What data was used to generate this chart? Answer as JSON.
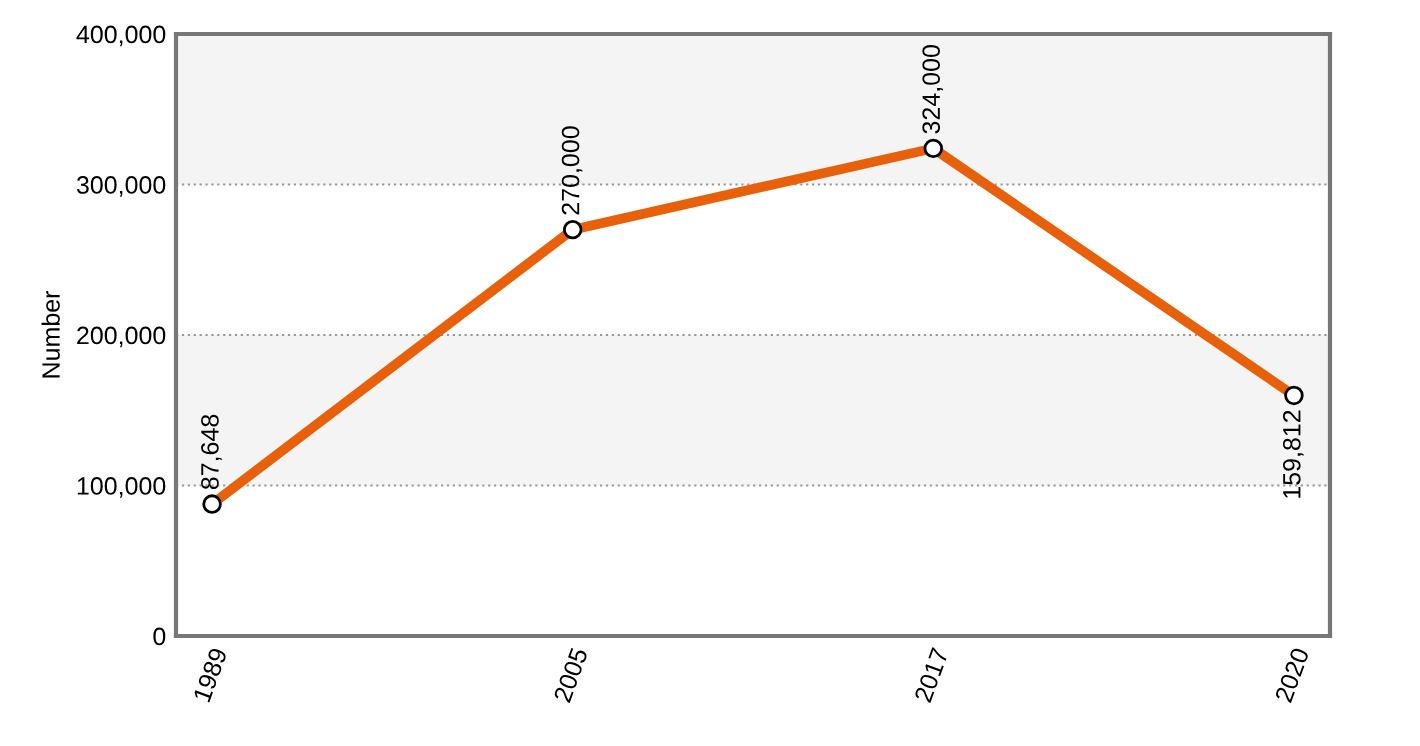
{
  "chart_data": {
    "type": "line",
    "ylabel": "Number",
    "categories": [
      "1989",
      "2005",
      "2017",
      "2020"
    ],
    "series": [
      {
        "color": "#e8600a",
        "values": [
          87648,
          270000,
          324000,
          159812
        ],
        "value_labels": [
          "87,648",
          "270,000",
          "324,000",
          "159,812"
        ]
      }
    ],
    "ylim": [
      0,
      400000
    ],
    "yticks": [
      {
        "value": 0,
        "label": "0"
      },
      {
        "value": 100000,
        "label": "100,000"
      },
      {
        "value": 200000,
        "label": "200,000"
      },
      {
        "value": 300000,
        "label": "300,000"
      },
      {
        "value": 400000,
        "label": "400,000"
      }
    ],
    "bands": [
      {
        "axis": "y",
        "from": 100000,
        "to": 200000,
        "color": "#f4f4f4"
      },
      {
        "axis": "y",
        "from": 300000,
        "to": 400000,
        "color": "#f4f4f4"
      }
    ],
    "grid": "y",
    "marker": "circle",
    "line_style": "solid"
  }
}
